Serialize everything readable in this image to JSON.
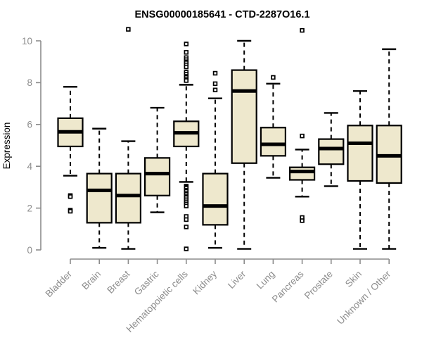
{
  "page": {
    "background": "#ffffff"
  },
  "chart_data": {
    "type": "boxplot",
    "title": "ENSG00000185641 - CTD-2287O16.1",
    "ylabel": "Expression",
    "xlabel": "",
    "ylim": [
      0,
      10
    ],
    "yticks": [
      0,
      2,
      4,
      6,
      8,
      10
    ],
    "grid": false,
    "legend": null,
    "categories": [
      "Bladder",
      "Brain",
      "Breast",
      "Gastric",
      "Hematopoietic cells",
      "Kidney",
      "Liver",
      "Lung",
      "Pancreas",
      "Prostate",
      "Skin",
      "Unknown / Other"
    ],
    "series": [
      {
        "category": "Bladder",
        "whisker_low": 3.55,
        "q1": 4.95,
        "median": 5.65,
        "q3": 6.3,
        "whisker_high": 7.8,
        "outliers": [
          2.6,
          2.55,
          1.9,
          1.85
        ]
      },
      {
        "category": "Brain",
        "whisker_low": 0.1,
        "q1": 1.3,
        "median": 2.85,
        "q3": 3.65,
        "whisker_high": 5.8,
        "outliers": []
      },
      {
        "category": "Breast",
        "whisker_low": 0.05,
        "q1": 1.3,
        "median": 2.6,
        "q3": 3.65,
        "whisker_high": 5.2,
        "outliers": [
          10.55
        ]
      },
      {
        "category": "Gastric",
        "whisker_low": 1.8,
        "q1": 2.6,
        "median": 3.65,
        "q3": 4.4,
        "whisker_high": 6.8,
        "outliers": []
      },
      {
        "category": "Hematopoietic cells",
        "whisker_low": 3.25,
        "q1": 4.95,
        "median": 5.6,
        "q3": 6.15,
        "whisker_high": 7.9,
        "outliers": [
          9.85,
          9.45,
          9.2,
          9.1,
          9.0,
          8.95,
          8.85,
          8.75,
          8.5,
          8.4,
          8.3,
          8.25,
          8.15,
          8.1,
          3.05,
          3.0,
          2.95,
          2.85,
          2.8,
          2.7,
          2.65,
          2.55,
          2.5,
          2.4,
          2.3,
          2.2,
          2.1,
          1.6,
          1.45,
          1.1,
          0.05
        ]
      },
      {
        "category": "Kidney",
        "whisker_low": 0.1,
        "q1": 1.2,
        "median": 2.1,
        "q3": 3.65,
        "whisker_high": 7.25,
        "outliers": [
          8.45,
          7.95,
          7.65
        ]
      },
      {
        "category": "Liver",
        "whisker_low": 0.05,
        "q1": 4.15,
        "median": 7.6,
        "q3": 8.6,
        "whisker_high": 10.0,
        "outliers": []
      },
      {
        "category": "Lung",
        "whisker_low": 3.45,
        "q1": 4.5,
        "median": 5.05,
        "q3": 5.85,
        "whisker_high": 7.95,
        "outliers": [
          8.25
        ]
      },
      {
        "category": "Pancreas",
        "whisker_low": 2.55,
        "q1": 3.35,
        "median": 3.75,
        "q3": 3.95,
        "whisker_high": 4.8,
        "outliers": [
          10.5,
          5.45,
          1.55,
          1.4
        ]
      },
      {
        "category": "Prostate",
        "whisker_low": 3.05,
        "q1": 4.1,
        "median": 4.85,
        "q3": 5.3,
        "whisker_high": 6.55,
        "outliers": []
      },
      {
        "category": "Skin",
        "whisker_low": 0.05,
        "q1": 3.3,
        "median": 5.1,
        "q3": 5.95,
        "whisker_high": 7.6,
        "outliers": []
      },
      {
        "category": "Unknown / Other",
        "whisker_low": 0.05,
        "q1": 3.2,
        "median": 4.5,
        "q3": 5.95,
        "whisker_high": 9.6,
        "outliers": []
      }
    ],
    "colors": {
      "box_fill": "#EEE8CD",
      "box_stroke": "#000000",
      "median_color": "#000000",
      "whisker_color": "#000000",
      "outlier_color": "#000000",
      "axis_color": "#8C8C8C",
      "tick_label_color": "#8C8C8C",
      "axis_title_color": "#8C8C8C",
      "title_color": "#000000"
    }
  }
}
